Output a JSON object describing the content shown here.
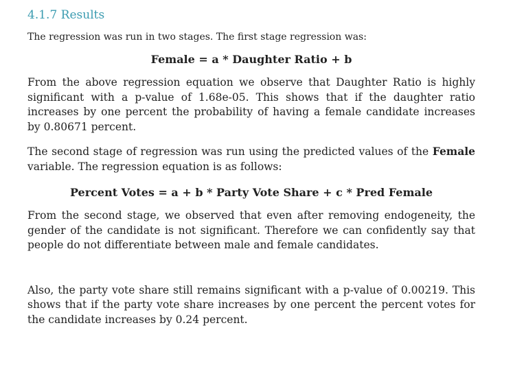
{
  "section": {
    "heading": "4.1.7 Results"
  },
  "intro": "The regression was run in two stages. The first stage regression was:",
  "equation1": "Female = a * Daughter Ratio + b",
  "para1": "From the above regression equation we observe that Daughter Ratio is highly significant with a p-value of 1.68e-05. This shows that if the daughter ratio increases by one percent the probability of having a female candidate increases by 0.80671 percent.",
  "para2": {
    "before": "The second stage of regression was run using the predicted values of the ",
    "bold": "Female",
    "after": " variable. The regression equation is as follows:"
  },
  "equation2": "Percent Votes = a + b * Party Vote Share + c * Pred Female",
  "para3": "From the second stage, we observed that even after removing endogeneity, the gender of the candidate is not significant. Therefore we can confidently say that people do not differentiate between male and female candidates.",
  "para4": "Also, the party vote share still remains significant with a p-value of 0.00219. This shows that if the party vote share increases by one percent the percent votes for the candidate increases by 0.24 percent."
}
